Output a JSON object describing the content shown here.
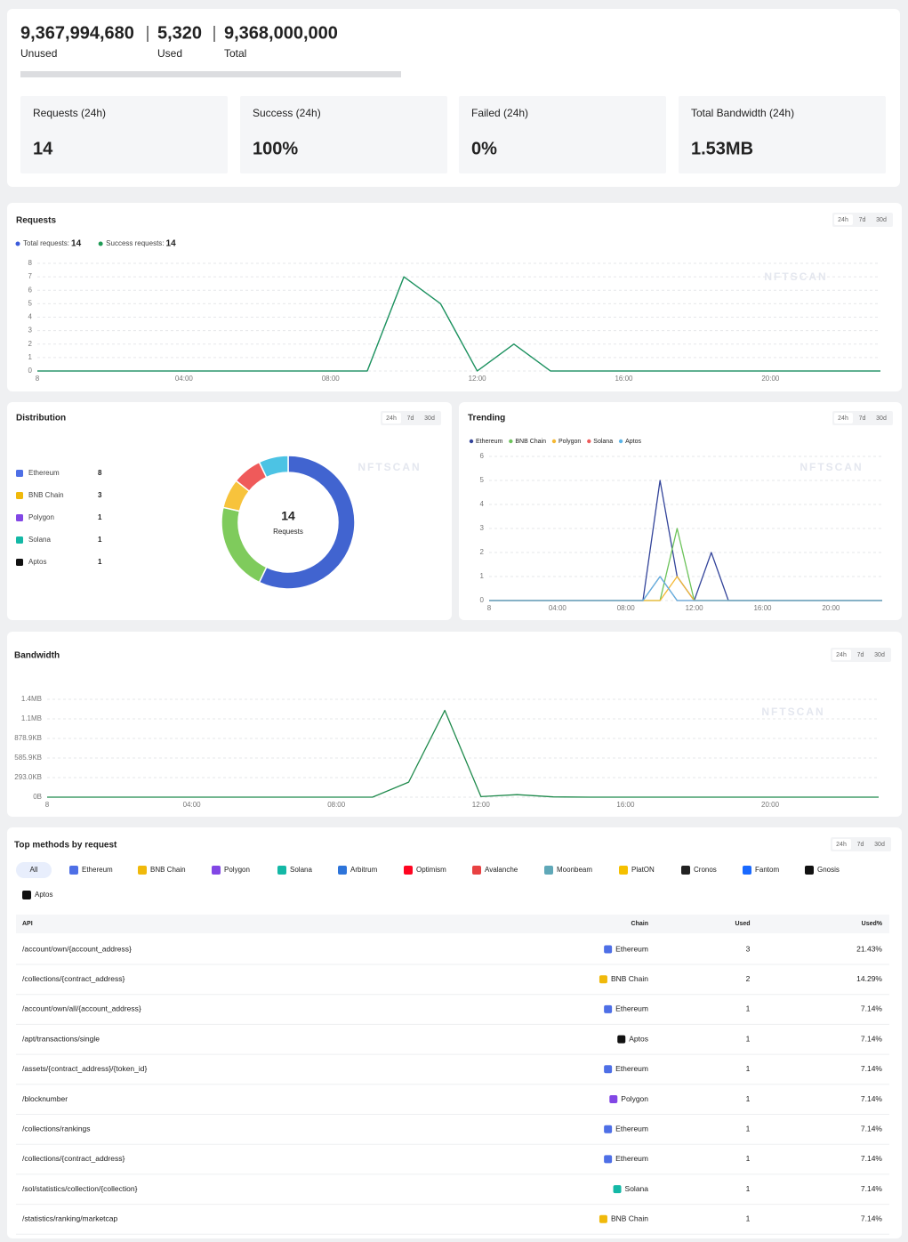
{
  "quota": {
    "unused": "9,367,994,680",
    "unused_label": "Unused",
    "used": "5,320",
    "used_label": "Used",
    "total": "9,368,000,000",
    "total_label": "Total"
  },
  "stats": [
    {
      "label": "Requests (24h)",
      "value": "14"
    },
    {
      "label": "Success (24h)",
      "value": "100%"
    },
    {
      "label": "Failed (24h)",
      "value": "0%"
    },
    {
      "label": "Total Bandwidth (24h)",
      "value": "1.53MB"
    }
  ],
  "chart_data": [
    {
      "type": "line",
      "title": "Requests",
      "ranges": [
        "24h",
        "7d",
        "30d"
      ],
      "watermark": "NFTSCAN",
      "categories": [
        "8",
        null,
        null,
        null,
        "04:00",
        null,
        null,
        null,
        "08:00",
        null,
        null,
        null,
        "12:00",
        null,
        null,
        null,
        "16:00",
        null,
        null,
        null,
        "20:00",
        null,
        null,
        null
      ],
      "series": [
        {
          "name": "Total requests:",
          "total": 14,
          "color": "#3b5bdb",
          "values": [
            0,
            0,
            0,
            0,
            0,
            0,
            0,
            0,
            0,
            0,
            7,
            5,
            0,
            2,
            0,
            0,
            0,
            0,
            0,
            0,
            0,
            0,
            0,
            0
          ]
        },
        {
          "name": "Success requests:",
          "total": 14,
          "color": "#1f9a55",
          "values": [
            0,
            0,
            0,
            0,
            0,
            0,
            0,
            0,
            0,
            0,
            7,
            5,
            0,
            2,
            0,
            0,
            0,
            0,
            0,
            0,
            0,
            0,
            0,
            0
          ]
        }
      ],
      "ylim": [
        0,
        8
      ],
      "yticks": [
        0,
        1,
        2,
        3,
        4,
        5,
        6,
        7,
        8
      ],
      "grid": true
    },
    {
      "type": "donut",
      "title": "Distribution",
      "ranges": [
        "24h",
        "7d",
        "30d"
      ],
      "watermark": "NFTSCAN",
      "categories": [
        "Ethereum",
        "BNB Chain",
        "Polygon",
        "Solana",
        "Aptos"
      ],
      "values": [
        8,
        3,
        1,
        1,
        1
      ],
      "colors": [
        "#4164d0",
        "#7fcb5c",
        "#f7c33c",
        "#ef5a5a",
        "#4cc3e4"
      ],
      "icon_colors": [
        "#4e6fe6",
        "#f0b90b",
        "#8247e5",
        "#14b8a6",
        "#111111"
      ],
      "center_value": 14,
      "center_label": "Requests"
    },
    {
      "type": "line",
      "title": "Trending",
      "ranges": [
        "24h",
        "7d",
        "30d"
      ],
      "watermark": "NFTSCAN",
      "categories": [
        "8",
        null,
        null,
        null,
        "04:00",
        null,
        null,
        null,
        "08:00",
        null,
        null,
        null,
        "12:00",
        null,
        null,
        null,
        "16:00",
        null,
        null,
        null,
        "20:00",
        null,
        null,
        null
      ],
      "series": [
        {
          "name": "Ethereum",
          "color": "#33449a",
          "values": [
            0,
            0,
            0,
            0,
            0,
            0,
            0,
            0,
            0,
            0,
            5,
            1,
            0,
            2,
            0,
            0,
            0,
            0,
            0,
            0,
            0,
            0,
            0,
            0
          ]
        },
        {
          "name": "BNB Chain",
          "color": "#6cc35a",
          "values": [
            0,
            0,
            0,
            0,
            0,
            0,
            0,
            0,
            0,
            0,
            0,
            3,
            0,
            0,
            0,
            0,
            0,
            0,
            0,
            0,
            0,
            0,
            0,
            0
          ]
        },
        {
          "name": "Polygon",
          "color": "#f5b833",
          "values": [
            0,
            0,
            0,
            0,
            0,
            0,
            0,
            0,
            0,
            0,
            0,
            1,
            0,
            0,
            0,
            0,
            0,
            0,
            0,
            0,
            0,
            0,
            0,
            0
          ]
        },
        {
          "name": "Solana",
          "color": "#ee5b5b",
          "values": [
            0,
            0,
            0,
            0,
            0,
            0,
            0,
            0,
            0,
            0,
            1,
            0,
            0,
            0,
            0,
            0,
            0,
            0,
            0,
            0,
            0,
            0,
            0,
            0
          ]
        },
        {
          "name": "Aptos",
          "color": "#5ab4e8",
          "values": [
            0,
            0,
            0,
            0,
            0,
            0,
            0,
            0,
            0,
            0,
            1,
            0,
            0,
            0,
            0,
            0,
            0,
            0,
            0,
            0,
            0,
            0,
            0,
            0
          ]
        }
      ],
      "ylim": [
        0,
        6
      ],
      "yticks": [
        0,
        1,
        2,
        3,
        4,
        5,
        6
      ],
      "grid": true
    },
    {
      "type": "line",
      "title": "Bandwidth",
      "ranges": [
        "24h",
        "7d",
        "30d"
      ],
      "watermark": "NFTSCAN",
      "categories": [
        "8",
        null,
        null,
        null,
        "04:00",
        null,
        null,
        null,
        "08:00",
        null,
        null,
        null,
        "12:00",
        null,
        null,
        null,
        "16:00",
        null,
        null,
        null,
        "20:00",
        null,
        null,
        null
      ],
      "series": [
        {
          "color": "#1f8a4c",
          "values": [
            0,
            0,
            0,
            0,
            0,
            0,
            0,
            0,
            0,
            0,
            230000,
            1330000,
            8000,
            38000,
            4000,
            0,
            0,
            0,
            0,
            0,
            0,
            0,
            0,
            0
          ]
        }
      ],
      "ylim": [
        0,
        1500000
      ],
      "yticks": [
        {
          "value": 0,
          "label": "0B"
        },
        {
          "value": 300000,
          "label": "293.0KB"
        },
        {
          "value": 600000,
          "label": "585.9KB"
        },
        {
          "value": 900000,
          "label": "878.9KB"
        },
        {
          "value": 1200000,
          "label": "1.1MB"
        },
        {
          "value": 1500000,
          "label": "1.4MB"
        }
      ],
      "grid": true
    }
  ],
  "methods": {
    "title": "Top methods by request",
    "ranges": [
      "24h",
      "7d",
      "30d"
    ],
    "filters": [
      {
        "name": "All"
      },
      {
        "name": "Ethereum",
        "color": "#4e6fe6"
      },
      {
        "name": "BNB Chain",
        "color": "#f0b90b"
      },
      {
        "name": "Polygon",
        "color": "#8247e5"
      },
      {
        "name": "Solana",
        "color": "#14b8a6"
      },
      {
        "name": "Arbitrum",
        "color": "#2d74da"
      },
      {
        "name": "Optimism",
        "color": "#ff0420"
      },
      {
        "name": "Avalanche",
        "color": "#e84142"
      },
      {
        "name": "Moonbeam",
        "color": "#5fa8b8"
      },
      {
        "name": "PlatON",
        "color": "#f5c000"
      },
      {
        "name": "Cronos",
        "color": "#222222"
      },
      {
        "name": "Fantom",
        "color": "#1969ff"
      },
      {
        "name": "Gnosis",
        "color": "#111111"
      },
      {
        "name": "Aptos",
        "color": "#111111"
      }
    ],
    "columns": [
      "API",
      "Chain",
      "Used",
      "Used%"
    ],
    "rows": [
      [
        "/account/own/{account_address}",
        "Ethereum",
        3,
        "21.43%"
      ],
      [
        "/collections/{contract_address}",
        "BNB Chain",
        2,
        "14.29%"
      ],
      [
        "/account/own/all/{account_address}",
        "Ethereum",
        1,
        "7.14%"
      ],
      [
        "/apt/transactions/single",
        "Aptos",
        1,
        "7.14%"
      ],
      [
        "/assets/{contract_address}/{token_id}",
        "Ethereum",
        1,
        "7.14%"
      ],
      [
        "/blocknumber",
        "Polygon",
        1,
        "7.14%"
      ],
      [
        "/collections/rankings",
        "Ethereum",
        1,
        "7.14%"
      ],
      [
        "/collections/{contract_address}",
        "Ethereum",
        1,
        "7.14%"
      ],
      [
        "/sol/statistics/collection/{collection}",
        "Solana",
        1,
        "7.14%"
      ],
      [
        "/statistics/ranking/marketcap",
        "BNB Chain",
        1,
        "7.14%"
      ]
    ]
  }
}
